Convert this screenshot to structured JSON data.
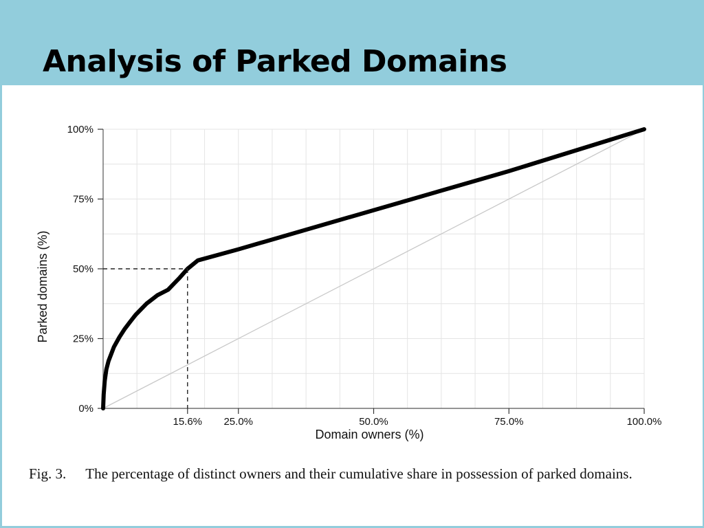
{
  "slide": {
    "title": "Analysis of Parked Domains",
    "band_color": "#92cddc"
  },
  "chart_data": {
    "type": "line",
    "xlabel": "Domain owners (%)",
    "ylabel": "Parked domains (%)",
    "xlim": [
      0,
      100
    ],
    "ylim": [
      0,
      100
    ],
    "grid": true,
    "x_ticks": [
      {
        "value": 15.6,
        "label": "15.6%"
      },
      {
        "value": 25,
        "label": "25.0%"
      },
      {
        "value": 50,
        "label": "50.0%"
      },
      {
        "value": 75,
        "label": "75.0%"
      },
      {
        "value": 100,
        "label": "100.0%"
      }
    ],
    "y_ticks": [
      {
        "value": 0,
        "label": "0%"
      },
      {
        "value": 25,
        "label": "25%"
      },
      {
        "value": 50,
        "label": "50%"
      },
      {
        "value": 75,
        "label": "75%"
      },
      {
        "value": 100,
        "label": "100%"
      }
    ],
    "x_gridlines": [
      6.25,
      12.5,
      18.75,
      25,
      31.25,
      37.5,
      43.75,
      50,
      56.25,
      62.5,
      68.75,
      75,
      81.25,
      87.5,
      93.75,
      100
    ],
    "y_gridlines": [
      12.5,
      25,
      37.5,
      50,
      62.5,
      75,
      87.5,
      100
    ],
    "series": [
      {
        "color": "#000000",
        "x": [
          0,
          0.1,
          0.3,
          0.6,
          1,
          2,
          3,
          4,
          5,
          6,
          7,
          8,
          9,
          10,
          11,
          12,
          14,
          15.6,
          17.5,
          25,
          50,
          75,
          100
        ],
        "y": [
          0,
          5,
          10,
          14,
          17,
          22,
          25.5,
          28.5,
          31,
          33.5,
          35.5,
          37.5,
          39,
          40.5,
          41.5,
          42.5,
          46.5,
          50,
          53,
          57,
          71,
          85,
          100
        ]
      },
      {
        "color": "#c8c8c8",
        "x": [
          0,
          100
        ],
        "y": [
          0,
          100
        ]
      }
    ],
    "annotations": [
      {
        "type": "dashed-guide",
        "x": 15.6,
        "y": 50
      }
    ]
  },
  "caption": {
    "label": "Fig. 3.",
    "text": "The percentage of distinct owners and their cumulative share in possession of parked domains."
  }
}
